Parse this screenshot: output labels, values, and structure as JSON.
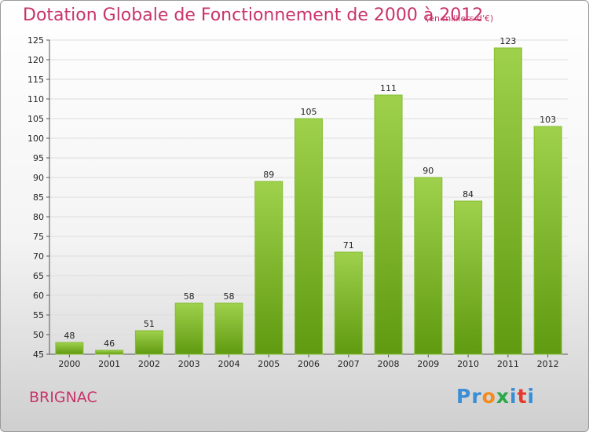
{
  "header": {
    "title": "Dotation Globale de Fonctionnement de 2000 à 2012",
    "subtitle": "(en milliers d'€)"
  },
  "footer": {
    "city": "BRIGNAC",
    "logo_letters": [
      {
        "char": "P",
        "color": "#3a8ed6"
      },
      {
        "char": "r",
        "color": "#3a8ed6"
      },
      {
        "char": "o",
        "color": "#f28a1c"
      },
      {
        "char": "x",
        "color": "#2aa84a"
      },
      {
        "char": "i",
        "color": "#3a8ed6"
      },
      {
        "char": "t",
        "color": "#e63a2e"
      },
      {
        "char": "i",
        "color": "#3a8ed6"
      }
    ]
  },
  "colors": {
    "bar_top": "#9fd14c",
    "bar_bottom": "#5f9a10",
    "grid": "#dddddd",
    "accent": "#c8336a"
  },
  "chart_data": {
    "type": "bar",
    "categories": [
      "2000",
      "2001",
      "2002",
      "2003",
      "2004",
      "2005",
      "2006",
      "2007",
      "2008",
      "2009",
      "2010",
      "2011",
      "2012"
    ],
    "values": [
      48,
      46,
      51,
      58,
      58,
      89,
      105,
      71,
      111,
      90,
      84,
      123,
      103
    ],
    "ylim": [
      45,
      125
    ],
    "yticks": [
      45,
      50,
      55,
      60,
      65,
      70,
      75,
      80,
      85,
      90,
      95,
      100,
      105,
      110,
      115,
      120,
      125
    ],
    "grid": true,
    "legend": "none"
  }
}
